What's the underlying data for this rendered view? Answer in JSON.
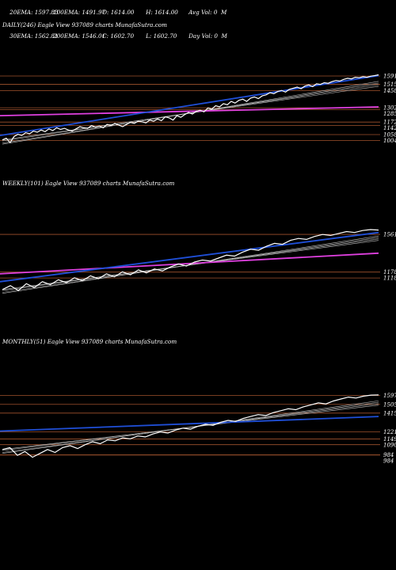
{
  "header": {
    "rows": [
      [
        "20EMA: 1597.83",
        "100EMA: 1491.97",
        "O: 1614.00",
        "H: 1614.00",
        "Avg Vol: 0  M"
      ],
      [
        "30EMA: 1562.81",
        "200EMA: 1546.01",
        "C: 1602.70",
        "L: 1602.70",
        "Day Vol: 0  M"
      ]
    ]
  },
  "panels": {
    "daily": {
      "title": "DAILY(246) Eagle   View  937089 charts MunafaSutra.com"
    },
    "weekly": {
      "title": "WEEKLY(101) Eagle   View  937089 charts MunafaSutra.com"
    },
    "monthly": {
      "title": "MONTHLY(51) Eagle   View  937089 charts MunafaSutra.com"
    }
  },
  "colors": {
    "price": "#ffffff",
    "ema_blue": "#1f4fd8",
    "ema_magenta": "#e040e0",
    "level": "#a0522d",
    "thin_ema": "#bbbbbb"
  },
  "chart_data": [
    {
      "type": "line",
      "name": "daily",
      "levels": [
        1591,
        1515,
        1458,
        1302,
        1285,
        1172,
        1142,
        1058,
        1004
      ],
      "ylim": [
        950,
        1620
      ],
      "close": [
        1010,
        1025,
        985,
        1040,
        1060,
        1050,
        1075,
        1065,
        1090,
        1080,
        1100,
        1085,
        1110,
        1095,
        1120,
        1105,
        1115,
        1100,
        1090,
        1110,
        1130,
        1120,
        1115,
        1140,
        1125,
        1135,
        1120,
        1150,
        1140,
        1160,
        1145,
        1130,
        1150,
        1170,
        1160,
        1180,
        1175,
        1165,
        1190,
        1180,
        1200,
        1185,
        1220,
        1210,
        1190,
        1230,
        1215,
        1240,
        1260,
        1245,
        1270,
        1280,
        1265,
        1300,
        1290,
        1320,
        1310,
        1340,
        1330,
        1360,
        1345,
        1370,
        1380,
        1360,
        1390,
        1400,
        1385,
        1410,
        1420,
        1440,
        1430,
        1450,
        1460,
        1445,
        1470,
        1480,
        1490,
        1475,
        1500,
        1510,
        1495,
        1520,
        1515,
        1530,
        1525,
        1540,
        1550,
        1545,
        1560,
        1570,
        1565,
        1580,
        1575,
        1585,
        1580,
        1590,
        1595,
        1602
      ],
      "ema_magenta": [
        1230,
        1310
      ],
      "ema_blue": [
        1050,
        1595
      ]
    },
    {
      "type": "line",
      "name": "weekly",
      "levels": [
        1561,
        1178,
        1118
      ],
      "ylim": [
        950,
        1650
      ],
      "close": [
        1000,
        1040,
        990,
        1060,
        1020,
        1080,
        1050,
        1100,
        1070,
        1120,
        1090,
        1140,
        1110,
        1160,
        1130,
        1180,
        1150,
        1200,
        1170,
        1210,
        1190,
        1230,
        1260,
        1240,
        1280,
        1300,
        1290,
        1320,
        1350,
        1340,
        1380,
        1410,
        1400,
        1440,
        1470,
        1460,
        1500,
        1520,
        1510,
        1540,
        1560,
        1550,
        1570,
        1590,
        1580,
        1600,
        1610,
        1605
      ],
      "ema_magenta": [
        1160,
        1370
      ],
      "ema_blue": [
        1080,
        1580
      ]
    },
    {
      "type": "line",
      "name": "monthly",
      "levels": [
        1597,
        1505,
        1415,
        1221,
        1149,
        1090,
        984,
        984
      ],
      "ylim": [
        900,
        1650
      ],
      "close": [
        1040,
        1060,
        980,
        1020,
        960,
        1000,
        1040,
        1010,
        1060,
        1080,
        1050,
        1090,
        1120,
        1100,
        1140,
        1130,
        1160,
        1150,
        1180,
        1170,
        1200,
        1220,
        1210,
        1240,
        1260,
        1250,
        1280,
        1300,
        1290,
        1320,
        1340,
        1330,
        1360,
        1380,
        1400,
        1390,
        1420,
        1440,
        1460,
        1450,
        1480,
        1500,
        1520,
        1510,
        1540,
        1560,
        1580,
        1570,
        1590,
        1600,
        1602
      ],
      "ema_blue": [
        1230,
        1380
      ]
    }
  ]
}
